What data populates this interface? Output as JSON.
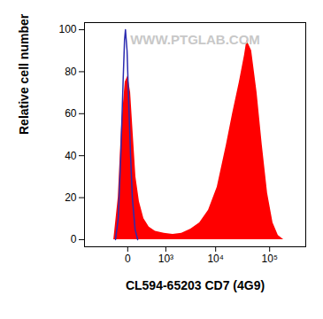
{
  "chart_data": {
    "type": "histogram",
    "x_label": "CL594-65203 CD7 (4G9)",
    "y_label": "Relative cell number",
    "annotations": [
      "WWW.PTGLAB.COM"
    ],
    "log": "x",
    "grid": false,
    "xlim": [
      -1300,
      460000
    ],
    "xticks": [
      0,
      {
        "value": 1000,
        "label": "10³"
      },
      {
        "value": 10000,
        "label": "10⁴"
      },
      {
        "value": 100000,
        "label": "10⁵"
      }
    ],
    "ylim": [
      -3.4,
      103.4
    ],
    "yticks": [
      0,
      20,
      40,
      60,
      80,
      100
    ],
    "series": [
      {
        "type": "area",
        "color": "#ff0000",
        "x": [
          -200,
          -123,
          -72,
          -28,
          2,
          32,
          65,
          102,
          159,
          244,
          368,
          553,
          917,
          1440,
          2200,
          3350,
          4970,
          7330,
          10700,
          15850,
          20700,
          27600,
          34500,
          38000,
          46500,
          58500,
          73000,
          91500,
          115000,
          144000,
          181000
        ],
        "values": [
          0,
          20,
          55,
          75,
          78,
          70,
          50,
          30,
          18,
          10,
          6,
          4,
          3,
          2.5,
          3,
          5,
          8,
          14,
          25,
          45,
          60,
          75,
          88,
          95,
          90,
          70,
          45,
          22,
          8,
          2,
          0
        ]
      },
      {
        "type": "line",
        "color": "#2b2bb0",
        "x": [
          -169,
          -123,
          -85,
          -54,
          -36,
          -25,
          -7,
          11,
          32,
          54,
          91,
          131
        ],
        "values": [
          0,
          10,
          40,
          75,
          95,
          100,
          90,
          65,
          40,
          20,
          5,
          0
        ]
      }
    ]
  }
}
